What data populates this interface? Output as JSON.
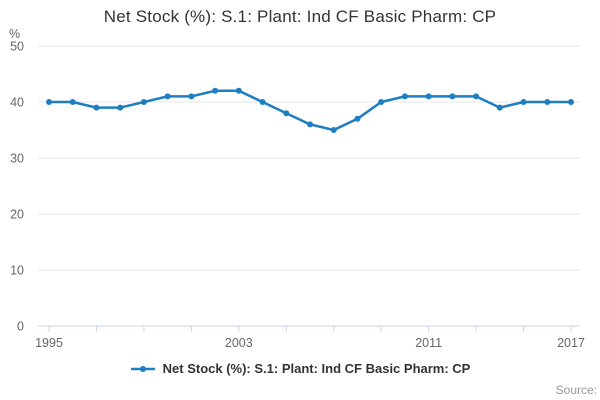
{
  "title": "Net Stock (%): S.1: Plant: Ind CF Basic Pharm: CP",
  "legend": {
    "label": "Net Stock (%): S.1: Plant: Ind CF Basic Pharm: CP"
  },
  "source_label": "Source:",
  "colors": {
    "line": "#1e7ec2",
    "grid": "#e6e6e6",
    "axis": "#ccd6eb",
    "tick_label": "#666666",
    "title": "#333333",
    "source": "#999999"
  },
  "chart_data": {
    "type": "line",
    "title": "Net Stock (%): S.1: Plant: Ind CF Basic Pharm: CP",
    "xlabel": "",
    "ylabel": "%",
    "x": [
      1995,
      1996,
      1997,
      1998,
      1999,
      2000,
      2001,
      2002,
      2003,
      2004,
      2005,
      2006,
      2007,
      2008,
      2009,
      2010,
      2011,
      2012,
      2013,
      2014,
      2015,
      2016,
      2017
    ],
    "series": [
      {
        "name": "Net Stock (%): S.1: Plant: Ind CF Basic Pharm: CP",
        "values": [
          40,
          40,
          39,
          39,
          40,
          41,
          41,
          42,
          42,
          40,
          38,
          36,
          35,
          37,
          40,
          41,
          41,
          41,
          41,
          39,
          40,
          40,
          40
        ]
      }
    ],
    "ylim": [
      0,
      50
    ],
    "yticks": [
      0,
      10,
      20,
      30,
      40,
      50
    ],
    "xtick_label_years": [
      1995,
      2003,
      2011,
      2017
    ],
    "xtick_mark_step": 2,
    "grid": true,
    "legend_position": "bottom"
  }
}
